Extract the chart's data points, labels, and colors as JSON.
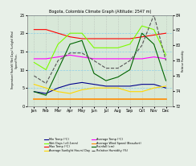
{
  "title": "Bogota, Colombia Climate Graph (Altitude: 2547 m)",
  "months": [
    "Jan",
    "Feb",
    "Mar",
    "Apr",
    "May",
    "Jun",
    "Jul",
    "Aug",
    "Sep",
    "Oct",
    "Nov",
    "Dec"
  ],
  "min_temp": [
    4,
    3.5,
    5,
    6,
    6.5,
    6,
    5.5,
    5.5,
    5.5,
    6,
    6,
    5
  ],
  "max_temp": [
    21,
    21,
    20,
    19,
    18.5,
    18.5,
    18.5,
    18.5,
    18.5,
    19,
    19.5,
    20
  ],
  "avg_temp": [
    13,
    13,
    13.5,
    14,
    13.5,
    13,
    13,
    13,
    13,
    13,
    13.5,
    13
  ],
  "rainfall": [
    4,
    3,
    10,
    17,
    18,
    9,
    7,
    8,
    10,
    20,
    17,
    7
  ],
  "wet_days": [
    12,
    10,
    17,
    20,
    20,
    16,
    16,
    16,
    17,
    22,
    21,
    14
  ],
  "sunlight_hours": [
    6,
    5,
    4,
    3.5,
    4.5,
    5,
    5,
    5,
    4,
    4,
    5,
    5.5
  ],
  "wind_speed": [
    2,
    2,
    2,
    2,
    2,
    2,
    2,
    2,
    2,
    2,
    2,
    2
  ],
  "humidity": [
    76,
    75,
    78,
    79,
    79,
    78,
    77,
    77,
    78,
    80,
    84,
    78
  ],
  "ylim_left": [
    0,
    25
  ],
  "ylim_right": [
    72,
    84
  ],
  "yticks_left": [
    0,
    5,
    10,
    15,
    20,
    25
  ],
  "yticks_right": [
    72,
    74,
    76,
    78,
    80,
    82,
    84
  ],
  "colors": {
    "min_temp": "#00008B",
    "max_temp": "#FF0000",
    "avg_temp": "#FF00FF",
    "rainfall": "#006400",
    "wet_days": "#7CFC00",
    "sunlight": "#FFD700",
    "wind_speed": "#FF8C00",
    "humidity": "#555555",
    "grid_h": "#87CEEB",
    "grid_v": "#999999",
    "background": "#e8f0e8",
    "plot_bg": "#d8e8d8"
  },
  "legend_labels": [
    "Min Temp (°C)",
    "Max Temp (°C)",
    "Average Temp (°C)",
    "Rainfall (cm)",
    "Wet Days (>0.1mm)",
    "Average Sunlight Hours/ Day",
    "Average Wind Speed (Beaufort)",
    "Relative Humidity (%)"
  ]
}
